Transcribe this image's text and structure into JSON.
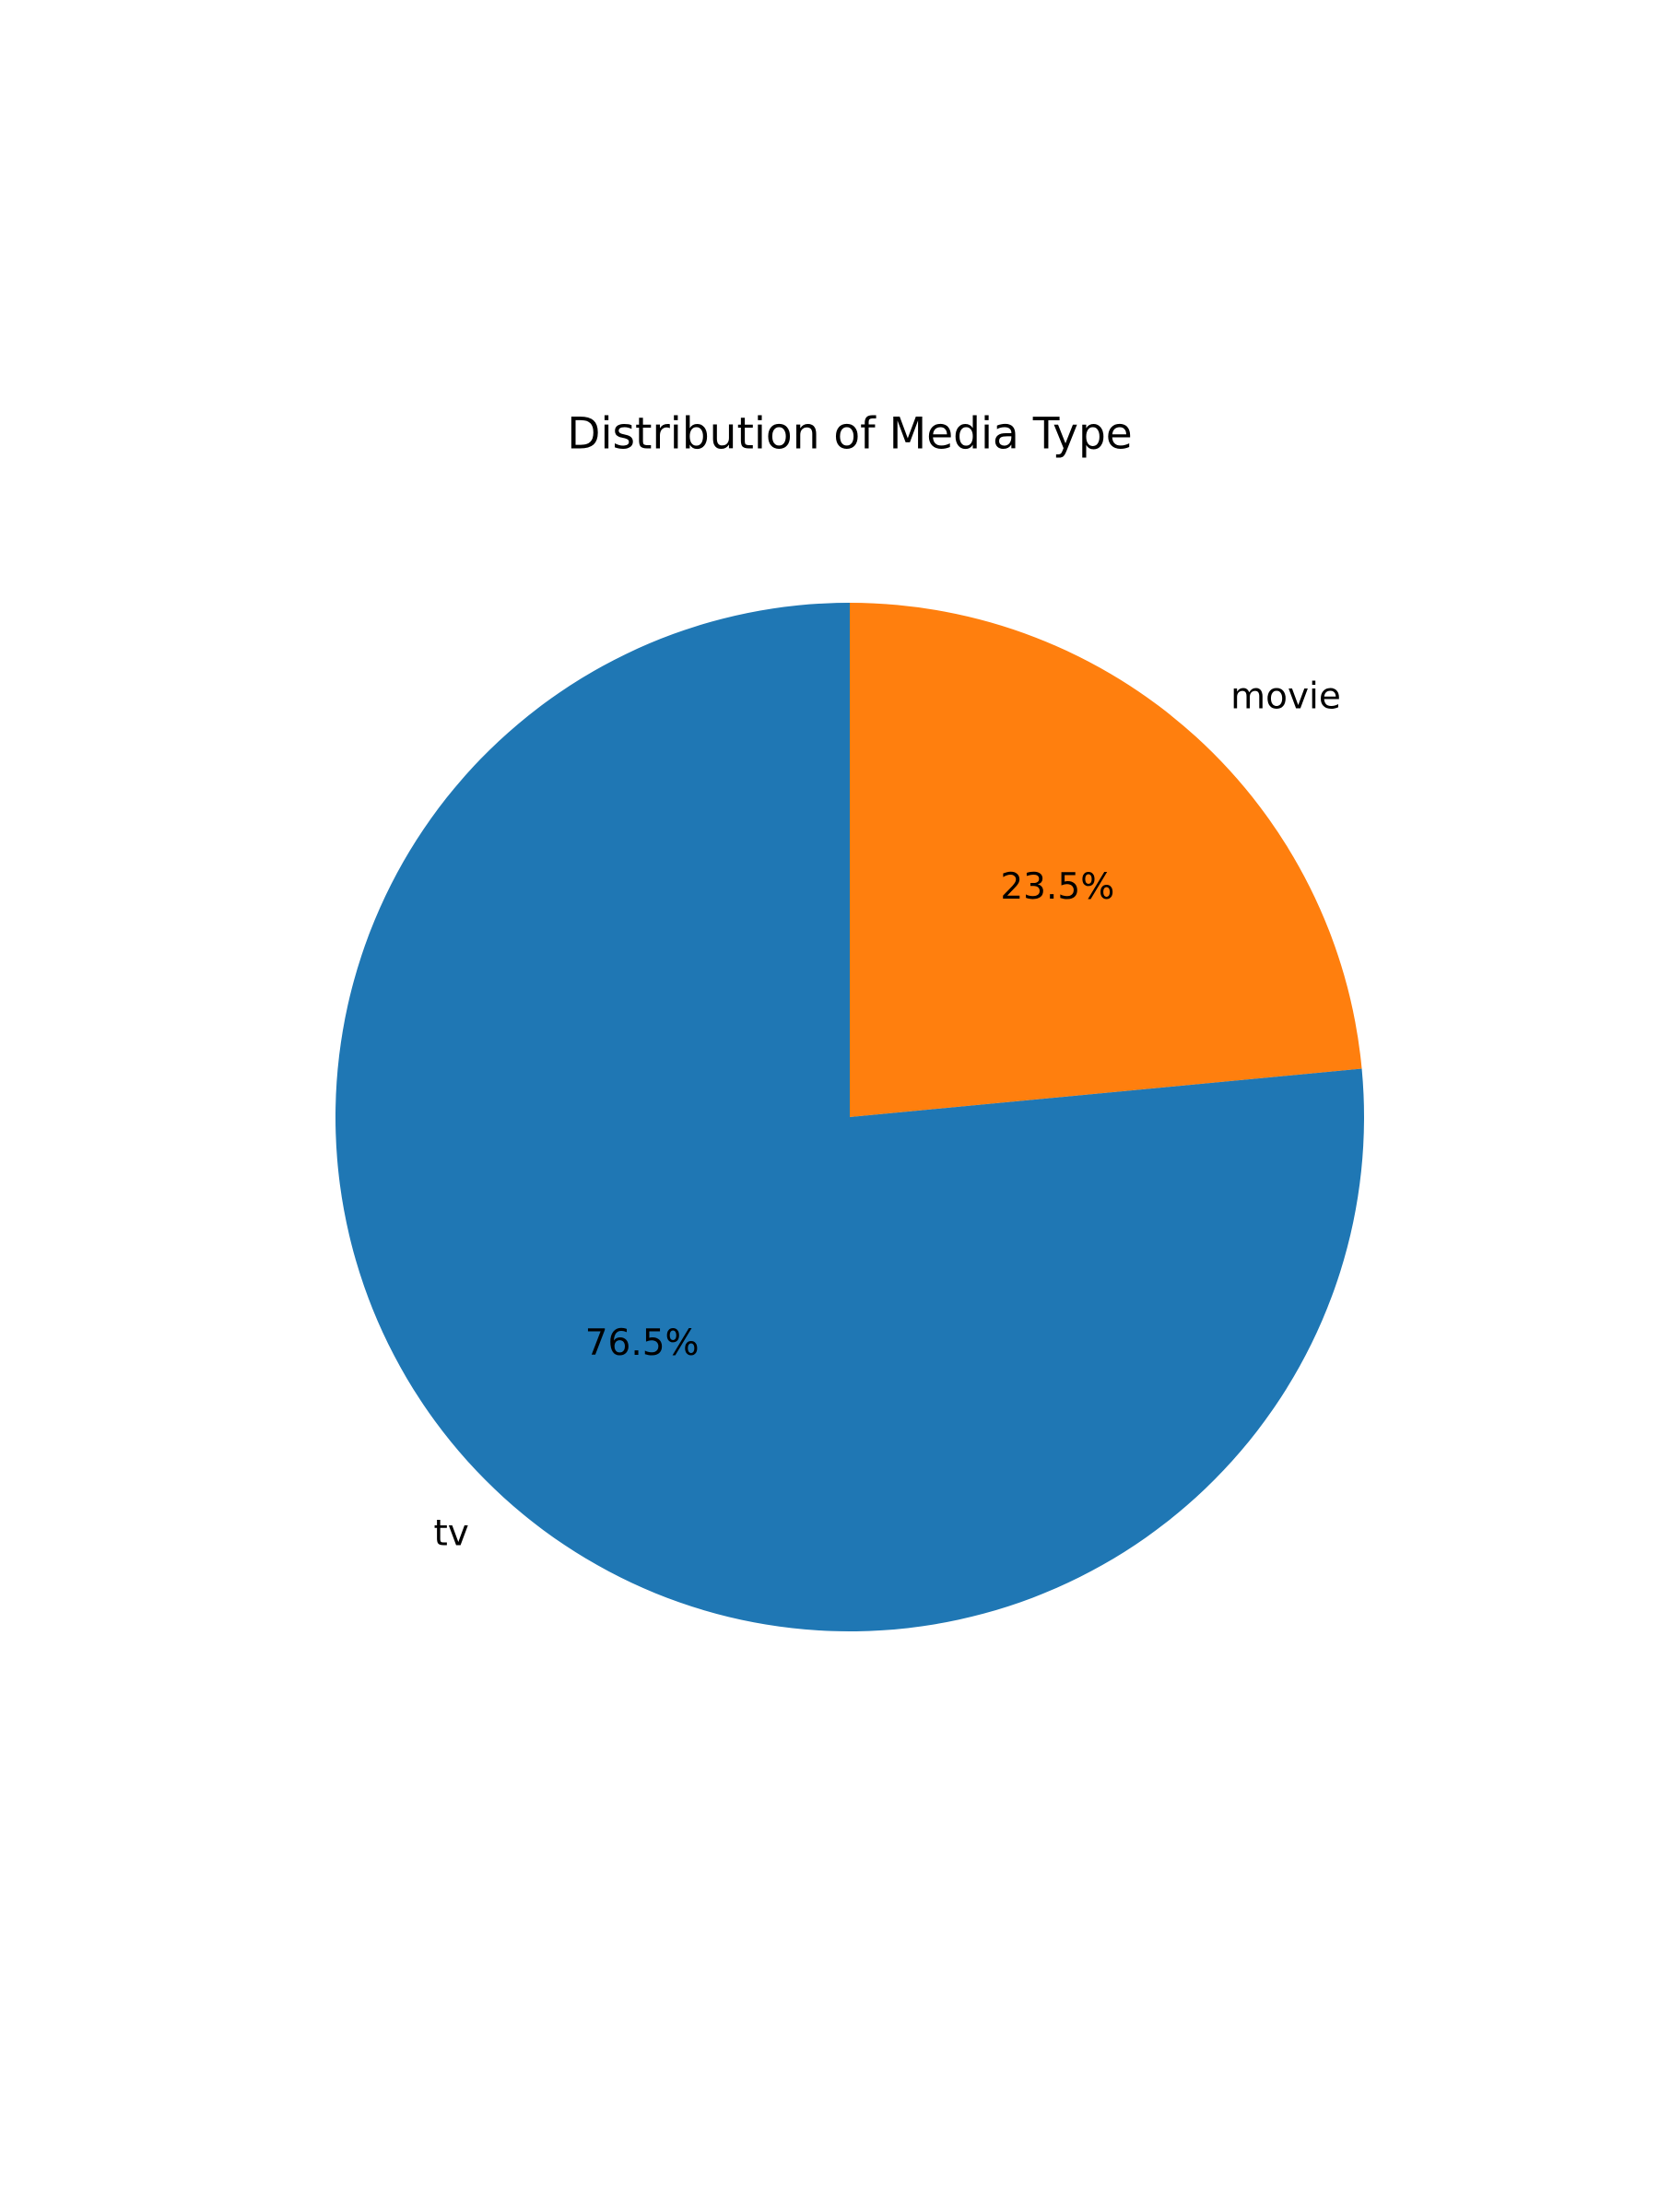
{
  "chart_data": {
    "type": "pie",
    "title": "Distribution of Media Type",
    "start_angle_deg": 90,
    "direction": "clockwise",
    "slices": [
      {
        "label": "movie",
        "value": 23.5,
        "pct_label": "23.5%",
        "color": "#ff7f0e"
      },
      {
        "label": "tv",
        "value": 76.5,
        "pct_label": "76.5%",
        "color": "#1f77b4"
      }
    ]
  }
}
